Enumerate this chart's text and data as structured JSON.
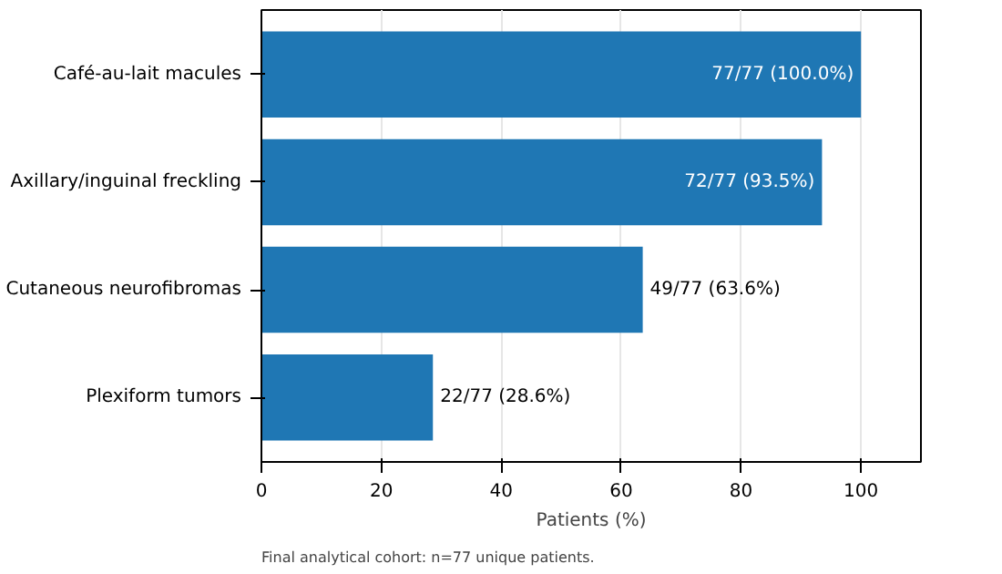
{
  "chart_data": {
    "type": "bar",
    "orientation": "horizontal",
    "xlabel": "Patients (%)",
    "categories": [
      "Café-au-lait macules",
      "Axillary/inguinal freckling",
      "Cutaneous neurofibromas",
      "Plexiform tumors"
    ],
    "values": [
      100.0,
      93.5,
      63.6,
      28.6
    ],
    "value_labels": [
      "77/77 (100.0%)",
      "72/77 (93.5%)",
      "49/77 (63.6%)",
      "22/77 (28.6%)"
    ],
    "color": "#1f77b4",
    "xlim": [
      0,
      110
    ],
    "xticks": [
      0,
      20,
      40,
      60,
      80,
      100
    ],
    "grid": "x",
    "annotations": [
      "Final analytical cohort: n=77 unique patients."
    ]
  }
}
